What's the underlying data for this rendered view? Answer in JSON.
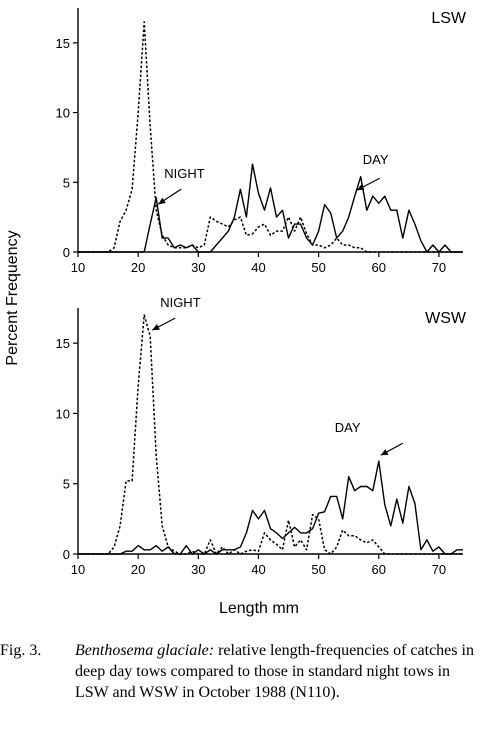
{
  "chart_data": {
    "type": "line",
    "ylabel": "Percent Frequency",
    "xlabel": "Length mm",
    "x_ticks": [
      10,
      20,
      30,
      40,
      50,
      60,
      70
    ],
    "y_ticks": [
      0,
      5,
      10,
      15
    ],
    "xlim": [
      10,
      74
    ],
    "ylim": [
      0,
      17.5
    ],
    "panels": [
      {
        "name": "LSW",
        "annotations": [
          {
            "text": "NIGHT",
            "series": "NIGHT",
            "x": 23
          },
          {
            "text": "DAY",
            "series": "DAY",
            "x": 56
          }
        ],
        "series": [
          {
            "name": "NIGHT",
            "style": "dotted",
            "x": [
              10,
              11,
              12,
              13,
              14,
              15,
              16,
              17,
              18,
              19,
              20,
              21,
              22,
              23,
              24,
              25,
              26,
              27,
              28,
              29,
              30,
              31,
              32,
              33,
              34,
              35,
              36,
              37,
              38,
              39,
              40,
              41,
              42,
              43,
              44,
              45,
              46,
              47,
              48,
              49,
              50,
              51,
              52,
              53,
              54,
              55,
              56,
              57,
              58,
              59,
              60,
              61,
              62,
              63,
              64,
              65,
              66,
              67,
              68,
              69,
              70,
              71,
              72,
              73,
              74
            ],
            "y": [
              0,
              0,
              0,
              0,
              0,
              0,
              0.3,
              2.2,
              3,
              4.5,
              10,
              16.5,
              9,
              3,
              1.2,
              0.5,
              0.3,
              0.3,
              0.3,
              0.5,
              0.3,
              0.5,
              2.5,
              2.2,
              2,
              1.8,
              2.3,
              2.5,
              1.2,
              1.3,
              1.8,
              2,
              1.2,
              1.5,
              1.5,
              2.5,
              1.5,
              2.5,
              1.3,
              0.5,
              0.5,
              0.3,
              0.5,
              1,
              0.5,
              0.5,
              0.3,
              0.3,
              0,
              0,
              0,
              0,
              0,
              0,
              0,
              0,
              0,
              0,
              0,
              0,
              0,
              0,
              0,
              0,
              0
            ]
          },
          {
            "name": "DAY",
            "style": "solid",
            "x": [
              10,
              11,
              12,
              13,
              14,
              15,
              16,
              17,
              18,
              19,
              20,
              21,
              22,
              23,
              24,
              25,
              26,
              27,
              28,
              29,
              30,
              31,
              32,
              33,
              34,
              35,
              36,
              37,
              38,
              39,
              40,
              41,
              42,
              43,
              44,
              45,
              46,
              47,
              48,
              49,
              50,
              51,
              52,
              53,
              54,
              55,
              56,
              57,
              58,
              59,
              60,
              61,
              62,
              63,
              64,
              65,
              66,
              67,
              68,
              69,
              70,
              71,
              72,
              73,
              74
            ],
            "y": [
              0,
              0,
              0,
              0,
              0,
              0,
              0,
              0,
              0,
              0,
              0,
              0,
              2,
              3.9,
              1,
              1,
              0.3,
              0.5,
              0.3,
              0.5,
              0,
              0,
              0,
              0.5,
              1,
              1.5,
              2.5,
              4.5,
              2.5,
              6.3,
              4.2,
              3,
              4.6,
              2.5,
              3,
              1,
              2,
              2,
              1,
              0.5,
              1.5,
              3.4,
              2.8,
              1,
              1.5,
              2.5,
              4,
              5.4,
              3,
              4,
              3.5,
              4,
              3,
              3,
              1,
              3,
              2,
              0.8,
              0,
              0.5,
              0,
              0.5,
              0,
              0,
              0
            ]
          }
        ]
      },
      {
        "name": "WSW",
        "annotations": [
          {
            "text": "NIGHT",
            "series": "NIGHT",
            "x": 22
          },
          {
            "text": "DAY",
            "series": "DAY",
            "x": 60
          }
        ],
        "series": [
          {
            "name": "NIGHT",
            "style": "dotted",
            "x": [
              10,
              11,
              12,
              13,
              14,
              15,
              16,
              17,
              18,
              19,
              20,
              21,
              22,
              23,
              24,
              25,
              26,
              27,
              28,
              29,
              30,
              31,
              32,
              33,
              34,
              35,
              36,
              37,
              38,
              39,
              40,
              41,
              42,
              43,
              44,
              45,
              46,
              47,
              48,
              49,
              50,
              51,
              52,
              53,
              54,
              55,
              56,
              57,
              58,
              59,
              60,
              61,
              62,
              63,
              64,
              65,
              66,
              67,
              68,
              69,
              70,
              71,
              72,
              73,
              74
            ],
            "y": [
              0,
              0,
              0,
              0,
              0,
              0,
              0.5,
              2,
              5.2,
              5.2,
              12,
              17,
              15.5,
              7,
              2,
              0.5,
              0.2,
              0,
              0,
              0.2,
              0,
              0,
              1,
              0,
              0.5,
              0,
              0.3,
              0,
              0.2,
              0.3,
              0.2,
              1.5,
              1,
              0.7,
              0.3,
              2.4,
              0.5,
              1,
              0.3,
              2.8,
              2.5,
              0.3,
              0,
              0.5,
              1.7,
              1.3,
              1.3,
              1,
              0.8,
              1,
              0.5,
              0,
              0,
              0,
              0,
              0,
              0,
              0,
              0,
              0,
              0,
              0,
              0,
              0,
              0
            ]
          },
          {
            "name": "DAY",
            "style": "solid",
            "x": [
              10,
              11,
              12,
              13,
              14,
              15,
              16,
              17,
              18,
              19,
              20,
              21,
              22,
              23,
              24,
              25,
              26,
              27,
              28,
              29,
              30,
              31,
              32,
              33,
              34,
              35,
              36,
              37,
              38,
              39,
              40,
              41,
              42,
              43,
              44,
              45,
              46,
              47,
              48,
              49,
              50,
              51,
              52,
              53,
              54,
              55,
              56,
              57,
              58,
              59,
              60,
              61,
              62,
              63,
              64,
              65,
              66,
              67,
              68,
              69,
              70,
              71,
              72,
              73,
              74
            ],
            "y": [
              0,
              0,
              0,
              0,
              0,
              0,
              0,
              0,
              0.2,
              0.2,
              0.6,
              0.3,
              0.3,
              0.6,
              0.2,
              0.5,
              0,
              0,
              0.6,
              0,
              0.3,
              0,
              0.3,
              0,
              0.3,
              0.3,
              0.3,
              0.5,
              1.5,
              3.1,
              2.5,
              3.1,
              1.8,
              1.5,
              1.1,
              1.5,
              1.9,
              1.5,
              1.5,
              1.8,
              2.9,
              3,
              4.1,
              4.1,
              2.5,
              5.5,
              4.5,
              4.8,
              4.8,
              4.5,
              6.6,
              3.5,
              2,
              3.9,
              2.2,
              4.8,
              3.6,
              0.3,
              1,
              0.2,
              0.5,
              0,
              0,
              0.3,
              0.3
            ]
          }
        ]
      }
    ]
  },
  "caption": {
    "label": "Fig. 3.",
    "species": "Benthosema glaciale:",
    "text": " relative length-frequencies of catches in deep day tows compared to those in standard night tows in LSW and WSW in October 1988 (N110)."
  }
}
